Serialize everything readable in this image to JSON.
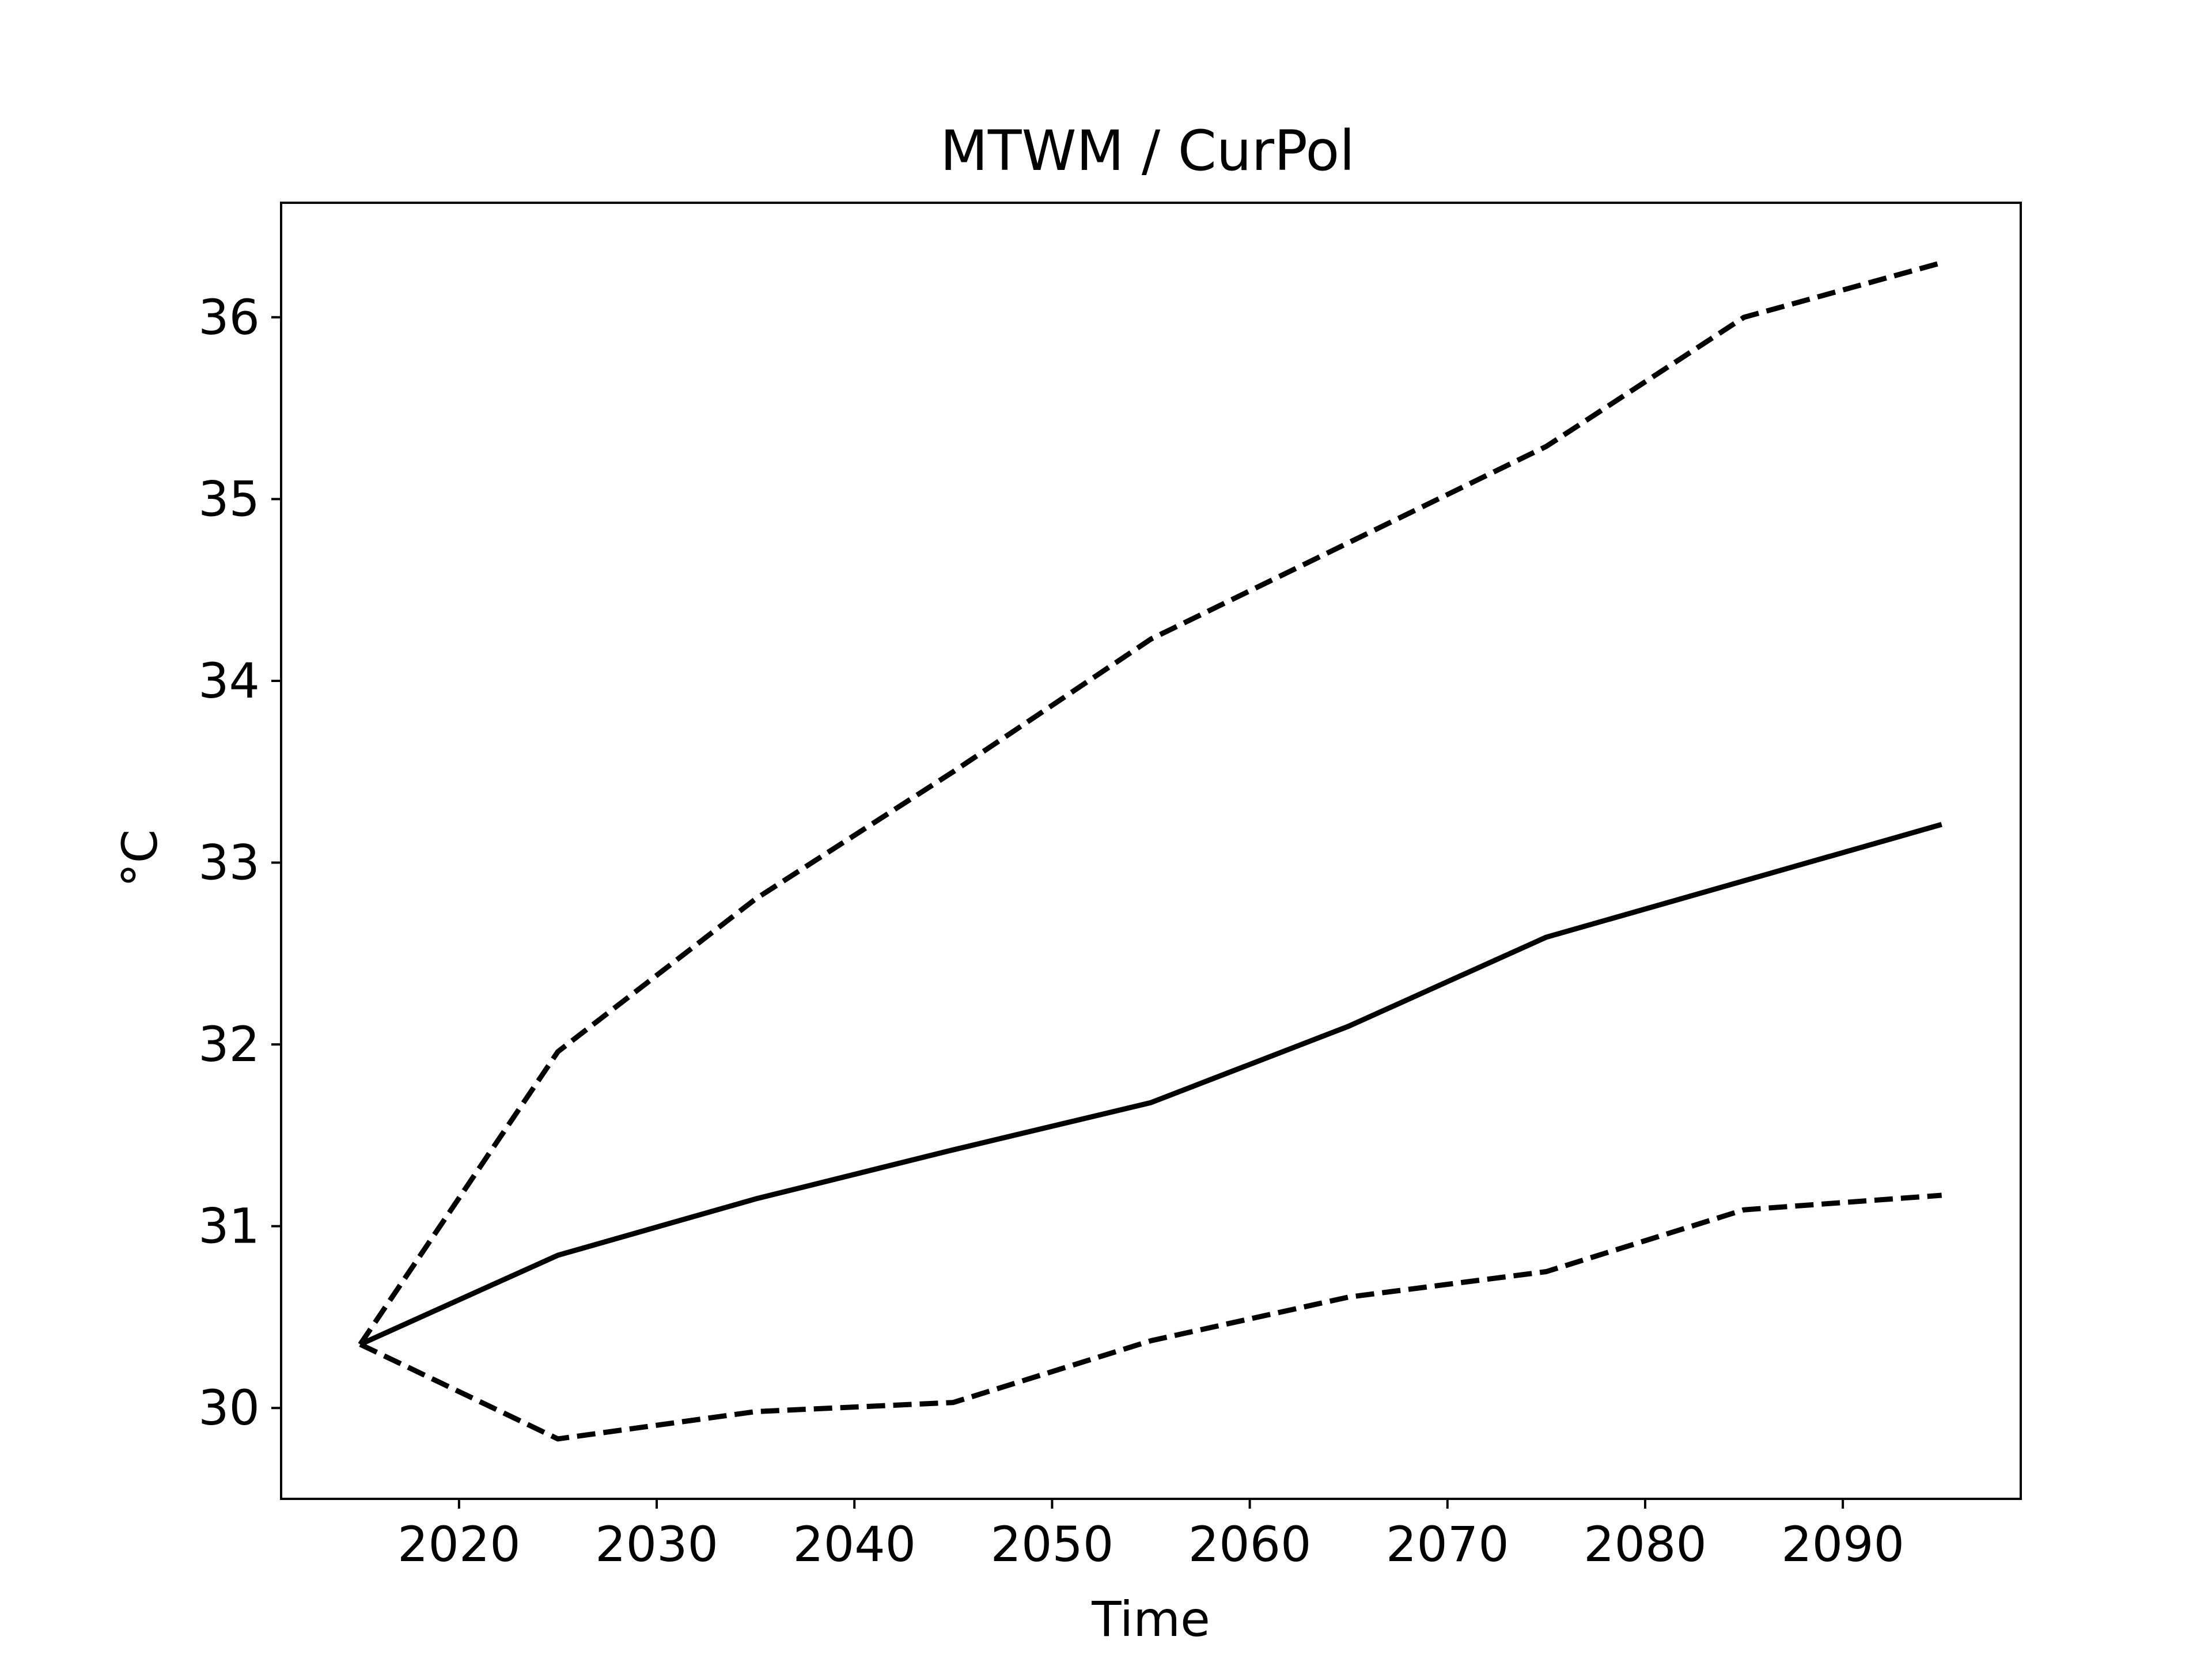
{
  "chart_data": {
    "type": "line",
    "title": "MTWM / CurPol",
    "xlabel": "Time",
    "ylabel": "°C",
    "x": [
      2015,
      2025,
      2035,
      2045,
      2055,
      2065,
      2075,
      2085,
      2095
    ],
    "series": [
      {
        "style": "solid",
        "values": [
          30.35,
          30.84,
          31.15,
          31.42,
          31.68,
          32.1,
          32.59,
          32.9,
          33.21
        ]
      },
      {
        "style": "dashed",
        "values": [
          30.35,
          31.96,
          32.8,
          33.5,
          34.23,
          34.76,
          35.29,
          36.0,
          36.3
        ]
      },
      {
        "style": "dashed",
        "values": [
          30.35,
          29.83,
          29.98,
          30.03,
          30.37,
          30.61,
          30.75,
          31.09,
          31.17
        ]
      }
    ],
    "xlim": [
      2011.0,
      2099.0
    ],
    "ylim": [
      29.5,
      36.63
    ],
    "xticks": [
      "2020",
      "2030",
      "2040",
      "2050",
      "2060",
      "2070",
      "2080",
      "2090"
    ],
    "yticks": [
      "30",
      "31",
      "32",
      "33",
      "34",
      "35",
      "36"
    ],
    "grid": false,
    "line_color": "#000000"
  }
}
